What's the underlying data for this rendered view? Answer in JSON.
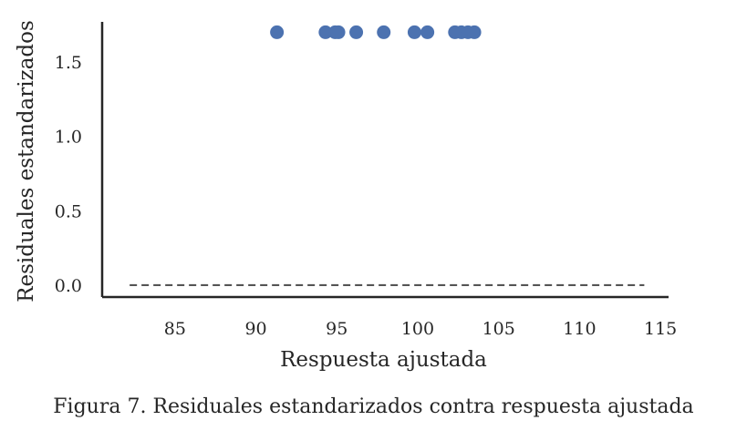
{
  "caption": "Figura 7. Residuales estandarizados contra respuesta ajustada",
  "chart_data": {
    "type": "scatter",
    "title": "",
    "xlabel": "Respuesta ajustada",
    "ylabel": "Residuales estandarizados",
    "xlim": [
      80.5,
      115.5
    ],
    "ylim": [
      -0.08,
      1.77
    ],
    "xticks": [
      85,
      90,
      95,
      100,
      105,
      110,
      115
    ],
    "xtick_labels": [
      "85",
      "90",
      "95",
      "100",
      "105",
      "110",
      "115"
    ],
    "yticks": [
      0.0,
      0.5,
      1.0,
      1.5
    ],
    "ytick_labels": [
      "0.0",
      "0.5",
      "1.0",
      "1.5"
    ],
    "grid": false,
    "series": [
      {
        "x": [
          91.3,
          94.3,
          94.9,
          95.1,
          96.2,
          97.9,
          99.8,
          100.6,
          102.3,
          102.7,
          103.1,
          103.5
        ],
        "y": [
          1.7,
          1.7,
          1.7,
          1.7,
          1.7,
          1.7,
          1.7,
          1.7,
          1.7,
          1.7,
          1.7,
          1.7
        ],
        "color": "#4c72b0"
      }
    ],
    "reference_line": {
      "y": 0.0,
      "x_from": 82.2,
      "x_to": 114.0,
      "style": "dashed",
      "color": "#555555"
    }
  }
}
